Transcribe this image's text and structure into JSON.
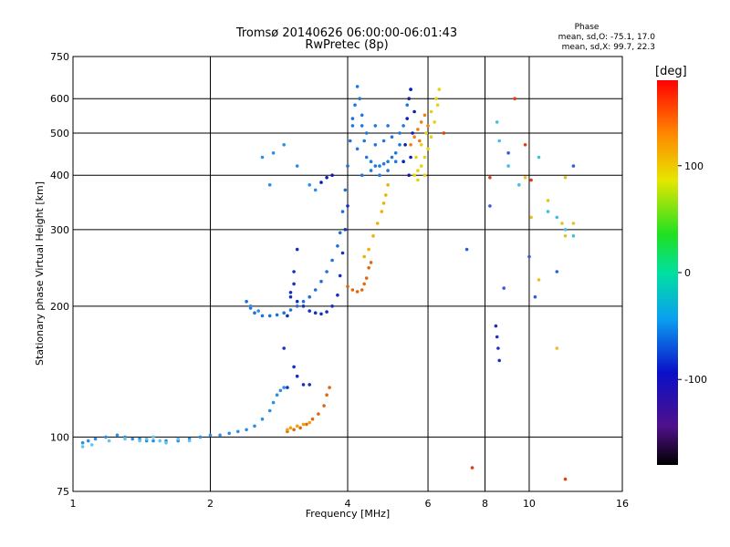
{
  "chart_data": {
    "type": "scatter",
    "title": "Tromsø 20140626 06:00:00-06:01:43",
    "subtitle": "RwPretec (8p)",
    "xlabel": "Frequency [MHz]",
    "ylabel": "Stationary phase Virtual Height [km]",
    "x_scale": "log",
    "y_scale": "log",
    "xlim": [
      1,
      16
    ],
    "ylim": [
      75,
      750
    ],
    "x_ticks": [
      1,
      2,
      4,
      6,
      8,
      10,
      16
    ],
    "y_ticks": [
      75,
      100,
      200,
      300,
      400,
      500,
      600,
      750
    ],
    "grid": true,
    "phase_box": {
      "heading": "Phase",
      "line_o": "mean, sd,O: -75.1, 17.0",
      "line_x": "mean, sd,X:  99.7, 22.3"
    },
    "colorbar": {
      "label": "[deg]",
      "range": [
        -180,
        180
      ],
      "ticks": [
        100,
        0,
        -100
      ]
    },
    "series": [
      {
        "color": "#2a8ee8",
        "points": [
          [
            1.05,
            97
          ],
          [
            1.08,
            98
          ],
          [
            1.12,
            99
          ],
          [
            1.18,
            100
          ],
          [
            1.25,
            101
          ],
          [
            1.3,
            100
          ],
          [
            1.35,
            99
          ],
          [
            1.4,
            99
          ],
          [
            1.45,
            98
          ],
          [
            1.5,
            98
          ],
          [
            1.6,
            98
          ],
          [
            1.7,
            98
          ],
          [
            1.8,
            99
          ],
          [
            1.9,
            100
          ],
          [
            2.0,
            101
          ],
          [
            2.1,
            101
          ],
          [
            2.2,
            102
          ],
          [
            2.3,
            103
          ],
          [
            2.4,
            104
          ],
          [
            2.5,
            106
          ],
          [
            2.6,
            110
          ],
          [
            2.7,
            115
          ],
          [
            2.75,
            120
          ],
          [
            2.8,
            125
          ],
          [
            2.85,
            128
          ],
          [
            2.9,
            130
          ]
        ]
      },
      {
        "color": "#5ec8ec",
        "points": [
          [
            1.05,
            95
          ],
          [
            1.1,
            96
          ],
          [
            1.2,
            98
          ],
          [
            1.3,
            99
          ],
          [
            1.4,
            98
          ],
          [
            1.45,
            99
          ],
          [
            1.5,
            100
          ],
          [
            1.55,
            98
          ],
          [
            1.6,
            97
          ],
          [
            1.7,
            99
          ],
          [
            1.8,
            98
          ]
        ]
      },
      {
        "color": "#1f6fd8",
        "points": [
          [
            2.4,
            205
          ],
          [
            2.45,
            198
          ],
          [
            2.5,
            193
          ],
          [
            2.6,
            190
          ],
          [
            2.7,
            190
          ],
          [
            2.8,
            191
          ],
          [
            2.9,
            193
          ],
          [
            3.0,
            196
          ],
          [
            3.1,
            200
          ],
          [
            3.2,
            205
          ],
          [
            3.3,
            210
          ],
          [
            3.4,
            218
          ],
          [
            3.5,
            228
          ],
          [
            3.6,
            240
          ],
          [
            3.7,
            255
          ],
          [
            3.8,
            275
          ],
          [
            3.85,
            295
          ],
          [
            3.9,
            330
          ],
          [
            3.95,
            370
          ],
          [
            4.0,
            420
          ],
          [
            4.05,
            480
          ],
          [
            4.1,
            540
          ]
        ]
      },
      {
        "color": "#1530c0",
        "points": [
          [
            2.9,
            160
          ],
          [
            2.95,
            190
          ],
          [
            3.0,
            215
          ],
          [
            3.05,
            240
          ],
          [
            3.1,
            270
          ],
          [
            3.05,
            225
          ],
          [
            3.0,
            210
          ],
          [
            3.1,
            205
          ],
          [
            3.2,
            200
          ],
          [
            3.3,
            195
          ],
          [
            3.4,
            193
          ],
          [
            3.5,
            192
          ],
          [
            3.6,
            194
          ],
          [
            3.7,
            200
          ],
          [
            3.8,
            212
          ],
          [
            3.85,
            235
          ],
          [
            3.9,
            265
          ],
          [
            3.95,
            300
          ],
          [
            4.0,
            340
          ],
          [
            3.2,
            132
          ],
          [
            3.1,
            138
          ],
          [
            3.05,
            145
          ],
          [
            2.95,
            130
          ],
          [
            3.3,
            132
          ]
        ]
      },
      {
        "color": "#1e78e0",
        "points": [
          [
            4.1,
            520
          ],
          [
            4.15,
            580
          ],
          [
            4.2,
            640
          ],
          [
            4.25,
            600
          ],
          [
            4.3,
            550
          ],
          [
            4.35,
            480
          ],
          [
            4.4,
            440
          ],
          [
            4.5,
            430
          ],
          [
            4.6,
            420
          ],
          [
            4.7,
            420
          ],
          [
            4.8,
            425
          ],
          [
            4.9,
            430
          ],
          [
            5.0,
            440
          ],
          [
            5.1,
            450
          ],
          [
            5.2,
            470
          ],
          [
            5.3,
            520
          ],
          [
            5.4,
            580
          ],
          [
            5.5,
            630
          ],
          [
            4.3,
            400
          ],
          [
            4.5,
            410
          ],
          [
            4.7,
            400
          ],
          [
            4.9,
            410
          ],
          [
            5.1,
            430
          ],
          [
            4.6,
            470
          ],
          [
            4.8,
            480
          ],
          [
            5.0,
            490
          ],
          [
            4.4,
            500
          ],
          [
            4.2,
            460
          ],
          [
            4.3,
            520
          ],
          [
            4.6,
            520
          ],
          [
            4.9,
            520
          ],
          [
            5.2,
            500
          ]
        ]
      },
      {
        "color": "#0a20b0",
        "points": [
          [
            3.5,
            385
          ],
          [
            3.6,
            395
          ],
          [
            3.7,
            400
          ],
          [
            5.3,
            430
          ],
          [
            5.35,
            470
          ],
          [
            5.4,
            540
          ],
          [
            5.45,
            600
          ],
          [
            5.5,
            630
          ],
          [
            5.6,
            560
          ],
          [
            5.55,
            500
          ],
          [
            5.5,
            440
          ],
          [
            5.45,
            400
          ]
        ]
      },
      {
        "color": "#f0b000",
        "points": [
          [
            4.35,
            260
          ],
          [
            4.45,
            270
          ],
          [
            4.55,
            290
          ],
          [
            4.65,
            310
          ],
          [
            4.75,
            330
          ],
          [
            4.8,
            345
          ],
          [
            4.85,
            360
          ],
          [
            4.9,
            380
          ]
        ]
      },
      {
        "color": "#e06810",
        "points": [
          [
            4.0,
            222
          ],
          [
            4.1,
            218
          ],
          [
            4.2,
            216
          ],
          [
            4.3,
            218
          ],
          [
            4.35,
            225
          ],
          [
            4.4,
            232
          ],
          [
            4.45,
            245
          ],
          [
            4.5,
            252
          ],
          [
            2.95,
            103
          ],
          [
            3.05,
            104
          ],
          [
            3.15,
            105
          ],
          [
            3.25,
            107
          ],
          [
            3.35,
            110
          ],
          [
            3.45,
            113
          ],
          [
            3.55,
            118
          ],
          [
            3.6,
            125
          ],
          [
            3.65,
            130
          ]
        ]
      },
      {
        "color": "#f4a000",
        "points": [
          [
            2.95,
            104
          ],
          [
            3.0,
            105
          ],
          [
            3.1,
            106
          ],
          [
            3.2,
            107
          ],
          [
            3.3,
            108
          ]
        ]
      },
      {
        "color": "#e6d210",
        "points": [
          [
            5.6,
            400
          ],
          [
            5.7,
            410
          ],
          [
            5.8,
            420
          ],
          [
            5.9,
            440
          ],
          [
            6.0,
            460
          ],
          [
            6.1,
            490
          ],
          [
            6.2,
            530
          ],
          [
            6.3,
            580
          ],
          [
            6.35,
            630
          ],
          [
            5.65,
            440
          ],
          [
            5.8,
            470
          ],
          [
            5.95,
            500
          ],
          [
            6.1,
            560
          ],
          [
            6.25,
            600
          ],
          [
            5.7,
            390
          ],
          [
            5.9,
            400
          ]
        ]
      },
      {
        "color": "#f08010",
        "points": [
          [
            5.5,
            470
          ],
          [
            5.6,
            490
          ],
          [
            5.7,
            510
          ],
          [
            5.8,
            530
          ],
          [
            5.9,
            550
          ],
          [
            6.0,
            520
          ],
          [
            5.75,
            480
          ]
        ]
      },
      {
        "color": "#2030c0",
        "points": [
          [
            8.5,
            170
          ],
          [
            8.55,
            160
          ],
          [
            8.6,
            150
          ],
          [
            8.45,
            180
          ]
        ]
      },
      {
        "color": "#40c0e0",
        "points": [
          [
            8.5,
            530
          ],
          [
            8.6,
            480
          ],
          [
            9.0,
            420
          ],
          [
            9.5,
            380
          ],
          [
            10.5,
            440
          ],
          [
            11.0,
            330
          ],
          [
            11.5,
            320
          ],
          [
            12.0,
            300
          ],
          [
            12.5,
            290
          ]
        ]
      },
      {
        "color": "#e8c020",
        "points": [
          [
            9.8,
            395
          ],
          [
            10.1,
            320
          ],
          [
            10.5,
            230
          ],
          [
            11.0,
            350
          ],
          [
            11.5,
            160
          ],
          [
            12.0,
            290
          ],
          [
            12.5,
            310
          ],
          [
            12.0,
            395
          ],
          [
            11.8,
            310
          ]
        ]
      },
      {
        "color": "#e04010",
        "points": [
          [
            9.3,
            600
          ],
          [
            9.8,
            470
          ],
          [
            10.1,
            390
          ],
          [
            6.5,
            500
          ],
          [
            7.5,
            85
          ],
          [
            8.2,
            395
          ],
          [
            12.0,
            80
          ]
        ]
      },
      {
        "color": "#3060d8",
        "points": [
          [
            10.0,
            260
          ],
          [
            10.3,
            210
          ],
          [
            11.5,
            240
          ],
          [
            8.2,
            340
          ],
          [
            7.3,
            270
          ],
          [
            8.8,
            220
          ],
          [
            12.5,
            420
          ],
          [
            9.0,
            450
          ]
        ]
      },
      {
        "color": "#2a8ee8",
        "points": [
          [
            2.6,
            440
          ],
          [
            2.75,
            450
          ],
          [
            2.9,
            470
          ],
          [
            3.1,
            420
          ],
          [
            3.3,
            380
          ],
          [
            3.4,
            370
          ],
          [
            2.7,
            380
          ],
          [
            2.45,
            200
          ],
          [
            2.55,
            195
          ]
        ]
      }
    ]
  }
}
